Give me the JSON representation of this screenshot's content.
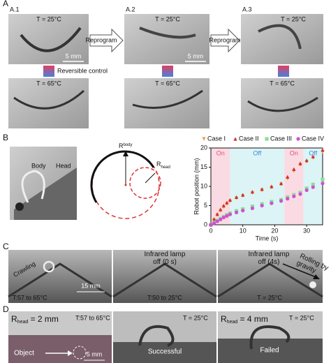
{
  "panels": {
    "a": {
      "label": "A",
      "sub": [
        "A.1",
        "A.2",
        "A.3"
      ],
      "top_temps": [
        "T = 25°C",
        "T = 25°C",
        "T = 25°C"
      ],
      "bottom_temps": [
        "T = 65°C",
        "T = 65°C",
        "T = 65°C"
      ],
      "arrows": [
        "Reprogram",
        "Reprogram"
      ],
      "scales": [
        "5 mm",
        "5 mm"
      ],
      "control": "Reversible control"
    },
    "b": {
      "label": "B",
      "body": "Body",
      "head": "Head",
      "r_body": {
        "main": "R",
        "sub": "body"
      },
      "r_head": {
        "main": "R",
        "sub": "head"
      }
    },
    "c": {
      "label": "C",
      "crawling": "Crawling",
      "lamp_0": "Infrared lamp\noff (0 s)",
      "lamp_4": "Infrared lamp\noff (4s)",
      "rolling": "Rolling by\ngravity",
      "scale": "15 mm",
      "temps": [
        "T:57 to 65°C",
        "T:50 to 25°C",
        "T = 25°C"
      ]
    },
    "d": {
      "label": "D",
      "r_head_2": {
        "main": "R",
        "sub": "head",
        "rest": " = 2 mm"
      },
      "temp_1": "T:57 to 65°C",
      "temp_2": "T = 25°C",
      "object": "Object",
      "scale": "5 mm",
      "successful": "Successful",
      "r_head_4": {
        "main": "R",
        "sub": "head",
        "rest": " = 4 mm"
      },
      "temp_3": "T = 25°C",
      "failed": "Failed"
    }
  },
  "chart_data": {
    "type": "scatter",
    "xlabel": "Time (s)",
    "ylabel": "Robot position (mm)",
    "x": [
      0,
      1,
      2,
      3,
      4,
      5,
      6,
      8,
      10,
      13,
      16,
      19,
      22,
      24,
      26,
      28,
      30,
      32,
      35
    ],
    "series": [
      {
        "name": "Case I",
        "color": "#e8a040",
        "marker": "triangle-down",
        "values": [
          0,
          1.2,
          2.5,
          3.6,
          4.6,
          5.4,
          6.1,
          6.9,
          7.5,
          8.3,
          9,
          9.7,
          10.5,
          12,
          14,
          15.6,
          16.4,
          17.4,
          19
        ]
      },
      {
        "name": "Case II",
        "color": "#d0302a",
        "marker": "triangle-up",
        "values": [
          0,
          1.5,
          2.8,
          4,
          5,
          5.8,
          6.5,
          7.2,
          7.8,
          8.6,
          9.3,
          10,
          10.8,
          12.5,
          14.5,
          16,
          16.8,
          17.8,
          19.5
        ]
      },
      {
        "name": "Case III",
        "color": "#8edc9c",
        "marker": "square",
        "values": [
          0,
          0.6,
          1.1,
          1.6,
          2.1,
          2.6,
          3,
          3.6,
          4.1,
          4.8,
          5.4,
          6,
          6.5,
          7.2,
          7.8,
          8.4,
          9.5,
          10.5,
          11.8
        ]
      },
      {
        "name": "Case IV",
        "color": "#d050d0",
        "marker": "circle",
        "values": [
          0,
          0.4,
          0.9,
          1.4,
          1.9,
          2.3,
          2.7,
          3.2,
          3.7,
          4.3,
          5,
          5.6,
          6.2,
          6.8,
          7.4,
          8,
          9,
          9.8,
          10.8
        ]
      }
    ],
    "regions": [
      {
        "xlim": [
          0,
          6
        ],
        "label": "On",
        "color": "#fadbe3",
        "label_color": "#e0507a"
      },
      {
        "xlim": [
          6,
          23
        ],
        "label": "Off",
        "color": "#dcf4f6",
        "label_color": "#3a86e0"
      },
      {
        "xlim": [
          23,
          29
        ],
        "label": "On",
        "color": "#fadbe3",
        "label_color": "#e0507a"
      },
      {
        "xlim": [
          29,
          35
        ],
        "label": "Off",
        "color": "#dcf4f6",
        "label_color": "#3a86e0"
      }
    ],
    "xlim": [
      0,
      35
    ],
    "xticks": [
      0,
      10,
      20,
      30
    ],
    "ylim": [
      0,
      20
    ],
    "yticks": [
      0,
      5,
      10,
      15,
      20
    ],
    "legend": "top"
  }
}
